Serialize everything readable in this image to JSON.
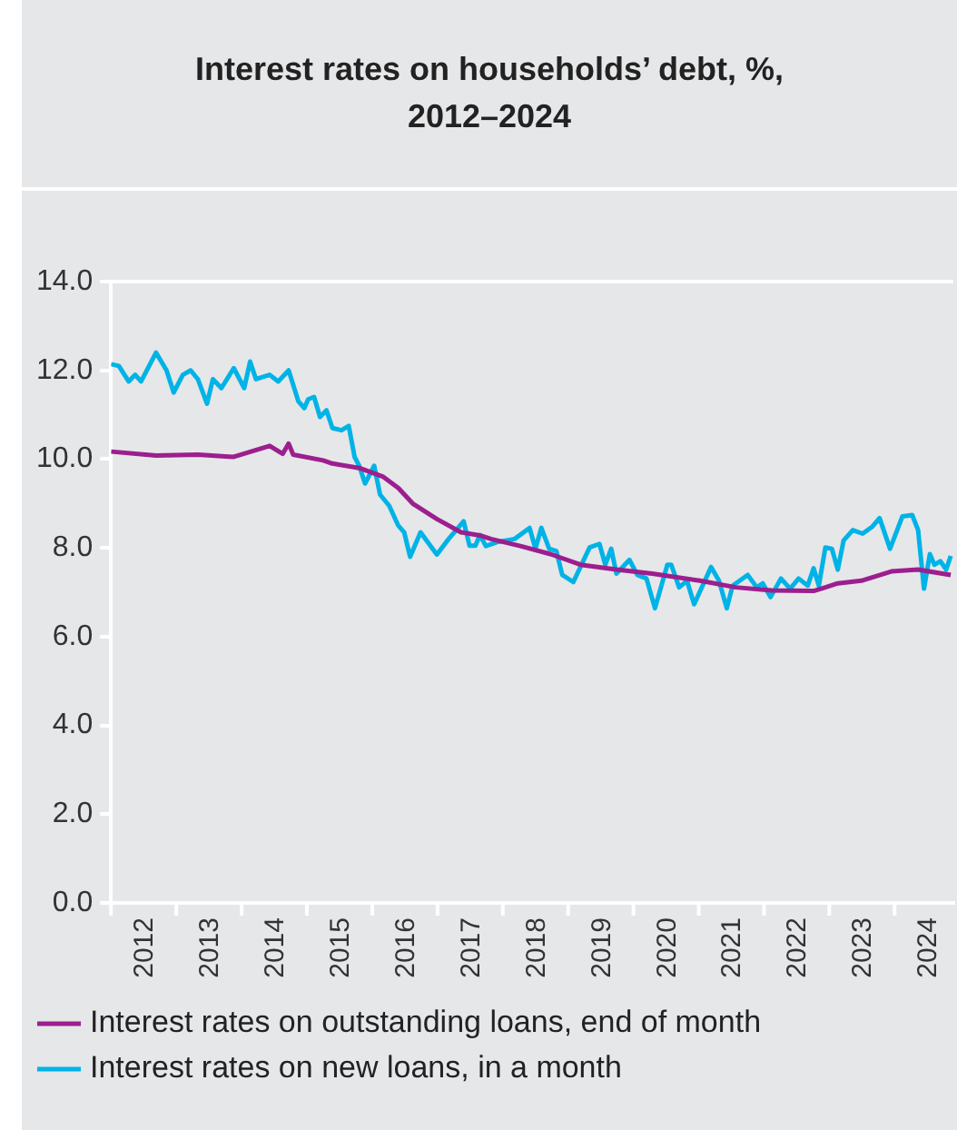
{
  "chart_data": {
    "type": "line",
    "title": "Interest rates on households’ debt, %, 2012–2024",
    "xlim": [
      2012,
      2024.9
    ],
    "xticks": [
      {
        "value": 2012,
        "label": null
      },
      {
        "value": 2012.5,
        "label": "2012"
      },
      {
        "value": 2013,
        "label": null
      },
      {
        "value": 2013.5,
        "label": "2013"
      },
      {
        "value": 2014,
        "label": null
      },
      {
        "value": 2014.5,
        "label": "2014"
      },
      {
        "value": 2015,
        "label": null
      },
      {
        "value": 2015.5,
        "label": "2015"
      },
      {
        "value": 2016,
        "label": null
      },
      {
        "value": 2016.5,
        "label": "2016"
      },
      {
        "value": 2017,
        "label": null
      },
      {
        "value": 2017.5,
        "label": "2017"
      },
      {
        "value": 2018,
        "label": null
      },
      {
        "value": 2018.5,
        "label": "2018"
      },
      {
        "value": 2019,
        "label": null
      },
      {
        "value": 2019.5,
        "label": "2019"
      },
      {
        "value": 2020,
        "label": null
      },
      {
        "value": 2020.5,
        "label": "2020"
      },
      {
        "value": 2021,
        "label": null
      },
      {
        "value": 2021.5,
        "label": "2021"
      },
      {
        "value": 2022,
        "label": null
      },
      {
        "value": 2022.5,
        "label": "2022"
      },
      {
        "value": 2023,
        "label": null
      },
      {
        "value": 2023.5,
        "label": "2023"
      },
      {
        "value": 2024,
        "label": null
      },
      {
        "value": 2024.5,
        "label": "2024"
      }
    ],
    "ylim": [
      0,
      14
    ],
    "yticks": [
      {
        "value": 0,
        "label": "0.0"
      },
      {
        "value": 2,
        "label": "2.0"
      },
      {
        "value": 4,
        "label": "4.0"
      },
      {
        "value": 6,
        "label": "6.0"
      },
      {
        "value": 8,
        "label": "8.0"
      },
      {
        "value": 10,
        "label": "10.0"
      },
      {
        "value": 12,
        "label": "12.0"
      },
      {
        "value": 14,
        "label": "14.0"
      }
    ],
    "grid": false,
    "legend": "bottom",
    "marker": "none",
    "line_style": "solid",
    "series": [
      {
        "name": "Interest rates on outstanding loans, end of month",
        "color": "#9c1f8e",
        "x": [
          2012.0,
          2012.69,
          2013.33,
          2013.88,
          2014.43,
          2014.63,
          2014.72,
          2014.79,
          2015.25,
          2015.39,
          2015.8,
          2016.17,
          2016.4,
          2016.62,
          2016.99,
          2017.36,
          2017.65,
          2017.82,
          2018.27,
          2018.73,
          2019.19,
          2019.74,
          2020.29,
          2021.02,
          2021.57,
          2022.12,
          2022.76,
          2022.94,
          2023.13,
          2023.49,
          2023.95,
          2024.36,
          2024.86
        ],
        "values": [
          10.17,
          10.08,
          10.1,
          10.05,
          10.3,
          10.12,
          10.35,
          10.1,
          9.97,
          9.9,
          9.8,
          9.6,
          9.35,
          9.0,
          8.65,
          8.35,
          8.28,
          8.2,
          8.04,
          7.86,
          7.62,
          7.51,
          7.42,
          7.26,
          7.11,
          7.04,
          7.03,
          7.11,
          7.2,
          7.26,
          7.47,
          7.51,
          7.39
        ]
      },
      {
        "name": "Interest rates on new loans, in a month",
        "color": "#00b3e6",
        "x": [
          2012.0,
          2012.12,
          2012.27,
          2012.37,
          2012.46,
          2012.69,
          2012.85,
          2012.96,
          2013.1,
          2013.22,
          2013.33,
          2013.47,
          2013.56,
          2013.69,
          2013.88,
          2014.04,
          2014.13,
          2014.22,
          2014.43,
          2014.56,
          2014.72,
          2014.87,
          2014.96,
          2015.02,
          2015.11,
          2015.2,
          2015.3,
          2015.39,
          2015.53,
          2015.64,
          2015.73,
          2015.8,
          2015.89,
          2016.03,
          2016.12,
          2016.26,
          2016.4,
          2016.49,
          2016.58,
          2016.74,
          2016.99,
          2017.17,
          2017.4,
          2017.49,
          2017.58,
          2017.65,
          2017.74,
          2017.91,
          2018.18,
          2018.41,
          2018.5,
          2018.59,
          2018.71,
          2018.82,
          2018.91,
          2019.08,
          2019.33,
          2019.48,
          2019.57,
          2019.66,
          2019.74,
          2019.94,
          2020.06,
          2020.2,
          2020.33,
          2020.52,
          2020.58,
          2020.7,
          2020.82,
          2020.93,
          2021.19,
          2021.31,
          2021.43,
          2021.52,
          2021.75,
          2021.89,
          2021.98,
          2022.1,
          2022.26,
          2022.4,
          2022.53,
          2022.67,
          2022.76,
          2022.84,
          2022.94,
          2023.04,
          2023.13,
          2023.22,
          2023.36,
          2023.51,
          2023.66,
          2023.77,
          2023.93,
          2024.12,
          2024.27,
          2024.36,
          2024.45,
          2024.54,
          2024.61,
          2024.7,
          2024.79,
          2024.86
        ],
        "values": [
          12.14,
          12.1,
          11.75,
          11.9,
          11.75,
          12.4,
          12.0,
          11.5,
          11.9,
          12.0,
          11.8,
          11.25,
          11.8,
          11.6,
          12.05,
          11.6,
          12.2,
          11.8,
          11.9,
          11.75,
          12.0,
          11.3,
          11.15,
          11.35,
          11.4,
          10.95,
          11.1,
          10.7,
          10.65,
          10.75,
          10.05,
          9.85,
          9.45,
          9.85,
          9.2,
          8.95,
          8.5,
          8.35,
          7.8,
          8.35,
          7.85,
          8.2,
          8.6,
          8.05,
          8.05,
          8.29,
          8.04,
          8.13,
          8.2,
          8.45,
          7.98,
          8.45,
          7.98,
          7.93,
          7.39,
          7.23,
          8.01,
          8.09,
          7.62,
          7.98,
          7.42,
          7.73,
          7.39,
          7.31,
          6.64,
          7.62,
          7.62,
          7.11,
          7.26,
          6.73,
          7.57,
          7.26,
          6.64,
          7.15,
          7.39,
          7.11,
          7.2,
          6.89,
          7.31,
          7.08,
          7.31,
          7.15,
          7.54,
          7.15,
          8.01,
          7.98,
          7.51,
          8.17,
          8.4,
          8.32,
          8.48,
          8.67,
          7.98,
          8.71,
          8.74,
          8.4,
          7.08,
          7.86,
          7.62,
          7.7,
          7.51,
          7.82
        ]
      }
    ]
  }
}
